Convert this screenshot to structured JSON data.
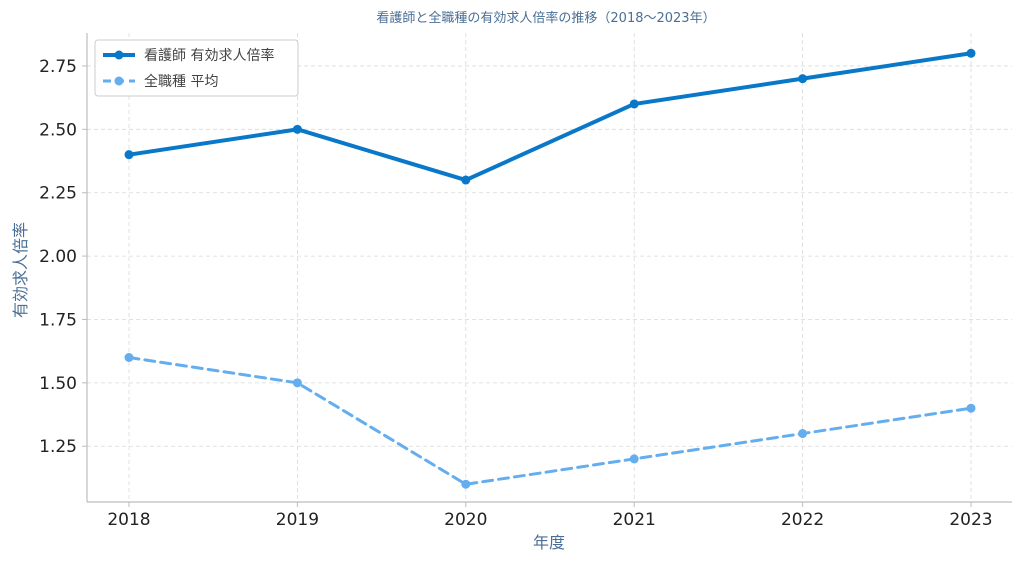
{
  "chart_data": {
    "type": "line",
    "title": "看護師と全職種の有効求人倍率の推移（2018〜2023年）",
    "xlabel": "年度",
    "ylabel": "有効求人倍率",
    "categories": [
      "2018",
      "2019",
      "2020",
      "2021",
      "2022",
      "2023"
    ],
    "x_tick_labels": [
      "2018",
      "2019",
      "2020",
      "2021",
      "2022",
      "2023"
    ],
    "y_tick_values": [
      1.25,
      1.5,
      1.75,
      2.0,
      2.25,
      2.5,
      2.75
    ],
    "y_tick_labels": [
      "1.25",
      "1.50",
      "1.75",
      "2.00",
      "2.25",
      "2.50",
      "2.75"
    ],
    "ylim": [
      1.03,
      2.88
    ],
    "grid": true,
    "legend_position": "top-left",
    "series": [
      {
        "name": "看護師 有効求人倍率",
        "values": [
          2.4,
          2.5,
          2.3,
          2.6,
          2.7,
          2.8
        ],
        "color": "#0a78c8",
        "line_style": "solid",
        "marker": "circle"
      },
      {
        "name": "全職種 平均",
        "values": [
          1.6,
          1.5,
          1.1,
          1.2,
          1.3,
          1.4
        ],
        "color": "#64aef0",
        "line_style": "dashed",
        "marker": "circle"
      }
    ]
  }
}
